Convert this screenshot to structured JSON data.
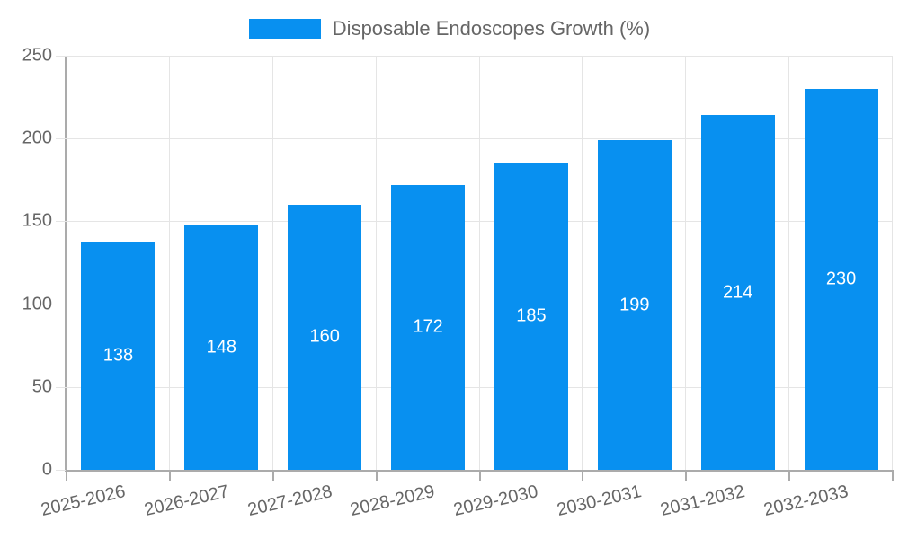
{
  "chart_data": {
    "type": "bar",
    "title": "",
    "legend_entries": [
      "Disposable Endoscopes Growth (%)"
    ],
    "legend_position": "top",
    "categories": [
      "2025-2026",
      "2026-2027",
      "2027-2028",
      "2028-2029",
      "2029-2030",
      "2030-2031",
      "2031-2032",
      "2032-2033"
    ],
    "values": [
      138,
      148,
      160,
      172,
      185,
      199,
      214,
      230
    ],
    "bar_value_labels": [
      "138",
      "148",
      "160",
      "172",
      "185",
      "199",
      "214",
      "230"
    ],
    "xlabel": "",
    "ylabel": "",
    "ylim": [
      0,
      250
    ],
    "yticks": [
      0,
      50,
      100,
      150,
      200,
      250
    ],
    "grid": true,
    "colors": {
      "bar": "#0890f0",
      "bar_label_text": "#ffffff",
      "tick_text": "#666666",
      "legend_text": "#666666",
      "gridline": "#e5e5e5",
      "axis_line": "#ababab",
      "background": "#ffffff"
    }
  }
}
